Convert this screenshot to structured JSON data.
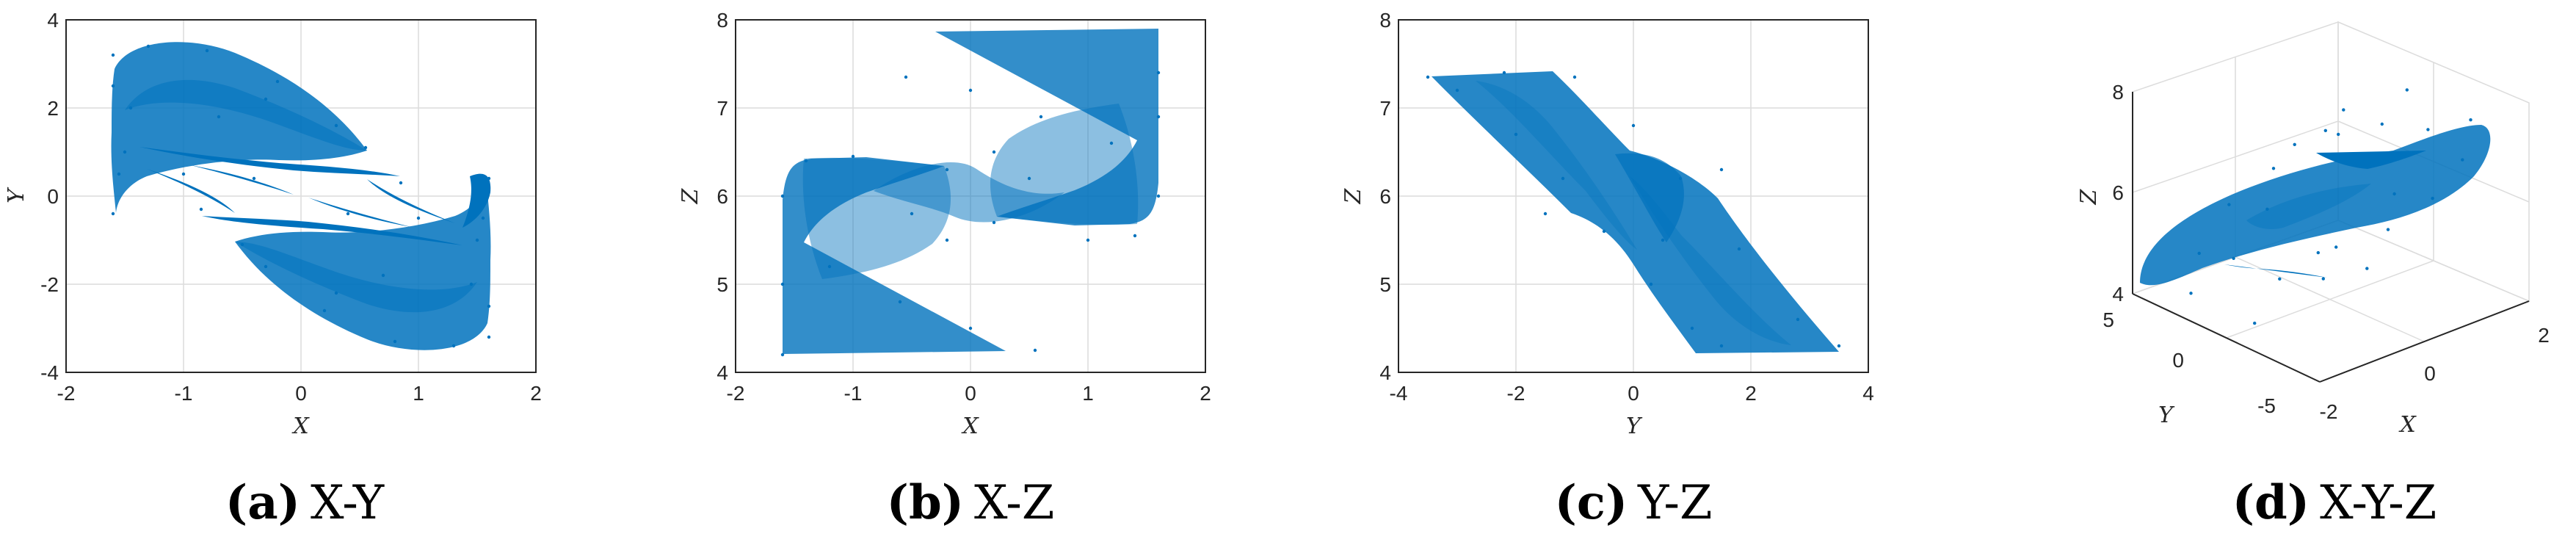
{
  "colors": {
    "series": "#0072BD",
    "axis": "#262626",
    "grid": "#dcdcdc"
  },
  "chart_data": [
    {
      "type": "scatter",
      "panel": "a",
      "caption_tag": "(a)",
      "caption": "X-Y",
      "xlabel": "X",
      "ylabel": "Y",
      "xlim": [
        -2,
        2
      ],
      "ylim": [
        -4,
        4
      ],
      "xticks": [
        -2,
        -1,
        0,
        1,
        2
      ],
      "yticks": [
        -4,
        -2,
        0,
        2,
        4
      ],
      "grid": true,
      "series": [
        {
          "values": [
            [
              -1.6,
              3.2
            ],
            [
              -1.3,
              3.4
            ],
            [
              -0.8,
              3.3
            ],
            [
              -0.2,
              2.6
            ],
            [
              0.3,
              1.6
            ],
            [
              0.55,
              1.1
            ],
            [
              -1.6,
              2.5
            ],
            [
              -1.5,
              1.0
            ],
            [
              -1.0,
              0.5
            ],
            [
              -0.4,
              0.4
            ],
            [
              0.2,
              0.6
            ],
            [
              0.85,
              0.3
            ],
            [
              -1.6,
              -0.4
            ],
            [
              -1.55,
              0.5
            ],
            [
              -1.45,
              2.0
            ],
            [
              -0.7,
              1.8
            ],
            [
              -0.3,
              2.2
            ],
            [
              1.6,
              -3.2
            ],
            [
              1.3,
              -3.4
            ],
            [
              0.8,
              -3.3
            ],
            [
              0.2,
              -2.6
            ],
            [
              -0.3,
              -1.6
            ],
            [
              -0.5,
              -1.1
            ],
            [
              1.6,
              -2.5
            ],
            [
              1.5,
              -1.0
            ],
            [
              1.0,
              -0.5
            ],
            [
              0.4,
              -0.4
            ],
            [
              -0.2,
              -0.6
            ],
            [
              -0.85,
              -0.3
            ],
            [
              1.6,
              0.4
            ],
            [
              1.55,
              -0.5
            ],
            [
              1.45,
              -2.0
            ],
            [
              0.7,
              -1.8
            ],
            [
              0.3,
              -2.2
            ]
          ]
        }
      ]
    },
    {
      "type": "scatter",
      "panel": "b",
      "caption_tag": "(b)",
      "caption": "X-Z",
      "xlabel": "X",
      "ylabel": "Z",
      "xlim": [
        -2,
        2
      ],
      "ylim": [
        4,
        8
      ],
      "xticks": [
        -2,
        -1,
        0,
        1,
        2
      ],
      "yticks": [
        4,
        5,
        6,
        7,
        8
      ],
      "grid": true,
      "series": [
        {
          "values": [
            [
              -1.6,
              4.2
            ],
            [
              -1.6,
              5.0
            ],
            [
              -1.6,
              6.0
            ],
            [
              -1.4,
              6.4
            ],
            [
              -1.0,
              6.45
            ],
            [
              -0.2,
              6.3
            ],
            [
              0.55,
              4.25
            ],
            [
              0.0,
              4.5
            ],
            [
              -0.6,
              4.8
            ],
            [
              -1.2,
              5.2
            ],
            [
              -0.5,
              5.8
            ],
            [
              -0.2,
              5.5
            ],
            [
              1.6,
              7.4
            ],
            [
              1.6,
              6.9
            ],
            [
              1.6,
              6.0
            ],
            [
              1.4,
              5.55
            ],
            [
              1.0,
              5.5
            ],
            [
              0.2,
              5.7
            ],
            [
              -0.55,
              7.35
            ],
            [
              0.0,
              7.2
            ],
            [
              0.6,
              6.9
            ],
            [
              1.2,
              6.6
            ],
            [
              0.5,
              6.2
            ],
            [
              0.2,
              6.5
            ]
          ]
        }
      ]
    },
    {
      "type": "scatter",
      "panel": "c",
      "caption_tag": "(c)",
      "caption": "Y-Z",
      "xlabel": "Y",
      "ylabel": "Z",
      "xlim": [
        -4,
        4
      ],
      "ylim": [
        4,
        8
      ],
      "xticks": [
        -4,
        -2,
        0,
        2,
        4
      ],
      "yticks": [
        4,
        5,
        6,
        7,
        8
      ],
      "grid": true,
      "series": [
        {
          "values": [
            [
              -3.5,
              7.35
            ],
            [
              -3.0,
              7.2
            ],
            [
              -2.0,
              6.7
            ],
            [
              -1.2,
              6.2
            ],
            [
              -0.5,
              5.6
            ],
            [
              0.3,
              5.0
            ],
            [
              1.0,
              4.5
            ],
            [
              1.5,
              4.3
            ],
            [
              3.5,
              4.3
            ],
            [
              2.8,
              4.6
            ],
            [
              1.8,
              5.4
            ],
            [
              0.8,
              6.2
            ],
            [
              0.0,
              6.8
            ],
            [
              -1.0,
              7.35
            ],
            [
              -2.2,
              7.4
            ],
            [
              -1.5,
              5.8
            ],
            [
              1.5,
              6.3
            ],
            [
              0.5,
              5.5
            ]
          ]
        }
      ]
    },
    {
      "type": "scatter",
      "panel": "d",
      "caption_tag": "(d)",
      "caption": "X-Y-Z",
      "xlabel": "X",
      "ylabel": "Y",
      "zlabel": "Z",
      "xlim": [
        -2,
        2
      ],
      "ylim": [
        -5,
        5
      ],
      "zlim": [
        4,
        8
      ],
      "xticks": [
        -2,
        0,
        2
      ],
      "yticks": [
        -5,
        0,
        5
      ],
      "zticks": [
        4,
        6,
        8
      ],
      "grid": true,
      "series": [
        {
          "values": [
            [
              -1.6,
              3.0,
              4.2
            ],
            [
              -1.3,
              3.4,
              4.8
            ],
            [
              -0.8,
              3.2,
              5.6
            ],
            [
              -0.2,
              2.5,
              6.2
            ],
            [
              0.4,
              1.4,
              6.9
            ],
            [
              0.6,
              1.0,
              7.3
            ],
            [
              -1.5,
              1.0,
              5.2
            ],
            [
              -0.8,
              0.5,
              4.6
            ],
            [
              0.0,
              0.4,
              4.3
            ],
            [
              0.8,
              0.3,
              4.2
            ],
            [
              -1.6,
              -0.4,
              4.2
            ],
            [
              -0.5,
              2.0,
              5.6
            ],
            [
              1.6,
              -3.0,
              7.4
            ],
            [
              1.3,
              -3.4,
              6.8
            ],
            [
              0.8,
              -3.2,
              6.2
            ],
            [
              0.2,
              -2.5,
              5.7
            ],
            [
              -0.4,
              -1.4,
              5.4
            ],
            [
              -0.6,
              -1.0,
              5.3
            ],
            [
              1.5,
              -1.0,
              6.9
            ],
            [
              0.8,
              -0.5,
              7.2
            ],
            [
              0.0,
              -0.4,
              7.3
            ],
            [
              -0.8,
              -0.3,
              7.4
            ],
            [
              1.6,
              0.4,
              7.4
            ],
            [
              0.5,
              -2.0,
              6.2
            ]
          ]
        }
      ]
    }
  ]
}
